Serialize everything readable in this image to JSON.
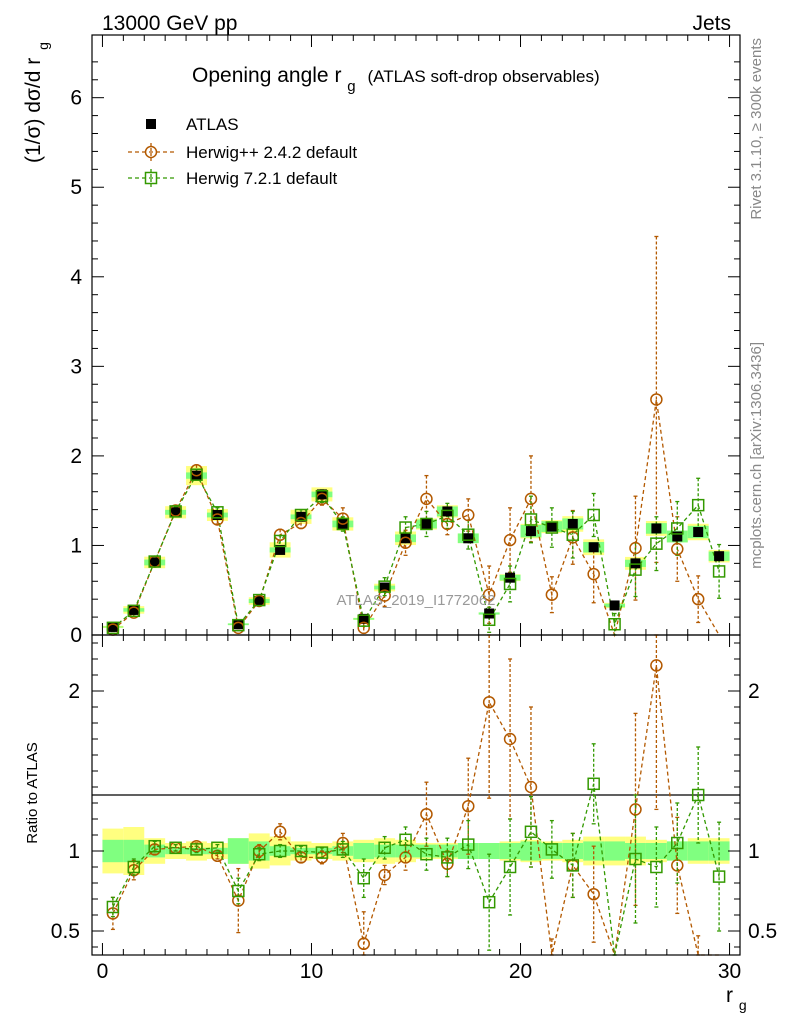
{
  "header": {
    "left": "13000 GeV pp",
    "right": "Jets"
  },
  "side": {
    "rivet": "Rivet 3.1.10, ≥ 300k events",
    "mcplots": "mcplots.cern.ch [arXiv:1306.3436]"
  },
  "watermark": "ATLAS_2019_I1772062",
  "chart_data": [
    {
      "type": "scatter",
      "panel": "main",
      "title": "Opening angle r",
      "title_sub": "g",
      "title_note": "(ATLAS soft-drop observables)",
      "ylabel": "(1/σ) dσ/d r",
      "ylabel_sub": "g",
      "xlim": [
        -0.5,
        30.5
      ],
      "ylim": [
        0,
        6.7
      ],
      "yticks": [
        "0",
        "1",
        "2",
        "3",
        "4",
        "5",
        "6"
      ],
      "xticks": [
        "0",
        "10",
        "20",
        "30"
      ],
      "legend_position": "top-left",
      "x": [
        0.5,
        1.5,
        2.5,
        3.5,
        4.5,
        5.5,
        6.5,
        7.5,
        8.5,
        9.5,
        10.5,
        11.5,
        12.5,
        13.5,
        14.5,
        15.5,
        16.5,
        17.5,
        18.5,
        19.5,
        20.5,
        21.5,
        22.5,
        23.5,
        24.5,
        25.5,
        26.5,
        27.5,
        28.5,
        29.5
      ],
      "series": [
        {
          "name": "ATLAS",
          "color": "#000000",
          "marker": "filled-square",
          "values": [
            0.09,
            0.28,
            0.81,
            1.37,
            1.78,
            1.34,
            0.12,
            0.38,
            0.95,
            1.32,
            1.57,
            1.24,
            0.18,
            0.53,
            1.08,
            1.24,
            1.38,
            1.08,
            0.24,
            0.64,
            1.16,
            1.21,
            1.24,
            0.98,
            0.33,
            0.8,
            1.19,
            1.1,
            1.15,
            0.88
          ],
          "band_inner": [
            0.07,
            0.07,
            0.04,
            0.02,
            0.02,
            0.02,
            0.08,
            0.06,
            0.03,
            0.02,
            0.02,
            0.03,
            0.05,
            0.04,
            0.04,
            0.04,
            0.04,
            0.05,
            0.05,
            0.05,
            0.06,
            0.05,
            0.05,
            0.06,
            0.06,
            0.05,
            0.05,
            0.06,
            0.06,
            0.06
          ],
          "band_outer": [
            0.14,
            0.15,
            0.08,
            0.05,
            0.06,
            0.05,
            0.08,
            0.11,
            0.09,
            0.06,
            0.05,
            0.06,
            0.07,
            0.08,
            0.07,
            0.05,
            0.05,
            0.05,
            0.05,
            0.06,
            0.07,
            0.06,
            0.07,
            0.09,
            0.09,
            0.09,
            0.07,
            0.06,
            0.08,
            0.08
          ]
        },
        {
          "name": "Herwig++ 2.4.2 default",
          "color": "#b35900",
          "marker": "open-circle",
          "values": [
            0.06,
            0.25,
            0.82,
            1.39,
            1.84,
            1.29,
            0.08,
            0.38,
            1.12,
            1.25,
            1.52,
            1.3,
            0.08,
            0.44,
            1.03,
            1.52,
            1.24,
            1.34,
            0.45,
            1.06,
            1.52,
            0.45,
            1.09,
            0.68,
            0.0,
            0.97,
            2.63,
            0.96,
            0.4,
            0.0
          ],
          "errors": [
            0.02,
            0.04,
            0.04,
            0.05,
            0.06,
            0.05,
            0.03,
            0.04,
            0.06,
            0.06,
            0.07,
            0.12,
            0.06,
            0.12,
            0.14,
            0.26,
            0.12,
            0.18,
            0.32,
            0.36,
            0.48,
            0.2,
            0.3,
            0.32,
            0.0,
            0.58,
            1.82,
            0.36,
            0.26,
            0.0
          ],
          "ratio_values": [
            0.61,
            0.88,
            1.01,
            1.02,
            1.03,
            0.97,
            0.69,
            1.0,
            1.12,
            0.96,
            0.96,
            1.05,
            0.42,
            0.85,
            0.96,
            1.23,
            0.92,
            1.28,
            1.93,
            1.7,
            1.4,
            0.3,
            0.91,
            0.73,
            0.0,
            1.26,
            2.16,
            0.91,
            0.32,
            0.0
          ],
          "ratio_errors": [
            0.1,
            0.06,
            0.03,
            0.02,
            0.02,
            0.02,
            0.2,
            0.04,
            0.05,
            0.03,
            0.04,
            0.06,
            0.2,
            0.06,
            0.08,
            0.2,
            0.08,
            0.3,
            0.6,
            0.5,
            0.5,
            0.15,
            0.2,
            0.3,
            0.0,
            0.6,
            0.9,
            0.3,
            0.15,
            0.0
          ]
        },
        {
          "name": "Herwig 7.2.1 default",
          "color": "#339900",
          "marker": "open-square",
          "values": [
            0.08,
            0.27,
            0.82,
            1.38,
            1.79,
            1.37,
            0.11,
            0.39,
            1.05,
            1.34,
            1.55,
            1.24,
            0.16,
            0.54,
            1.2,
            1.24,
            1.33,
            1.12,
            0.17,
            0.57,
            1.29,
            1.2,
            1.12,
            1.34,
            0.12,
            0.73,
            1.02,
            1.19,
            1.45,
            0.71
          ],
          "errors": [
            0.02,
            0.04,
            0.04,
            0.05,
            0.06,
            0.05,
            0.03,
            0.04,
            0.06,
            0.06,
            0.07,
            0.08,
            0.06,
            0.1,
            0.12,
            0.14,
            0.14,
            0.16,
            0.14,
            0.2,
            0.26,
            0.22,
            0.26,
            0.24,
            0.12,
            0.3,
            0.3,
            0.3,
            0.3,
            0.3
          ],
          "ratio_values": [
            0.65,
            0.9,
            1.03,
            1.02,
            1.01,
            1.02,
            0.75,
            0.98,
            1.0,
            1.0,
            0.99,
            1.01,
            0.83,
            1.02,
            1.07,
            0.98,
            0.96,
            1.04,
            0.68,
            0.9,
            1.12,
            1.01,
            0.91,
            1.42,
            0.15,
            0.95,
            0.9,
            1.05,
            1.35,
            0.84
          ],
          "ratio_errors": [
            0.06,
            0.05,
            0.03,
            0.02,
            0.02,
            0.02,
            0.08,
            0.04,
            0.04,
            0.03,
            0.03,
            0.05,
            0.12,
            0.07,
            0.08,
            0.1,
            0.12,
            0.15,
            0.3,
            0.3,
            0.22,
            0.18,
            0.2,
            0.25,
            0.2,
            0.4,
            0.25,
            0.25,
            0.3,
            0.34
          ]
        }
      ]
    },
    {
      "type": "scatter",
      "panel": "ratio",
      "ylabel": "Ratio to ATLAS",
      "xlabel": "r",
      "xlabel_sub": "g",
      "ylim": [
        0.35,
        2.35
      ],
      "yticks": [
        "0.5",
        "1",
        "2"
      ],
      "xticks": [
        "0",
        "10",
        "20",
        "30"
      ]
    }
  ]
}
